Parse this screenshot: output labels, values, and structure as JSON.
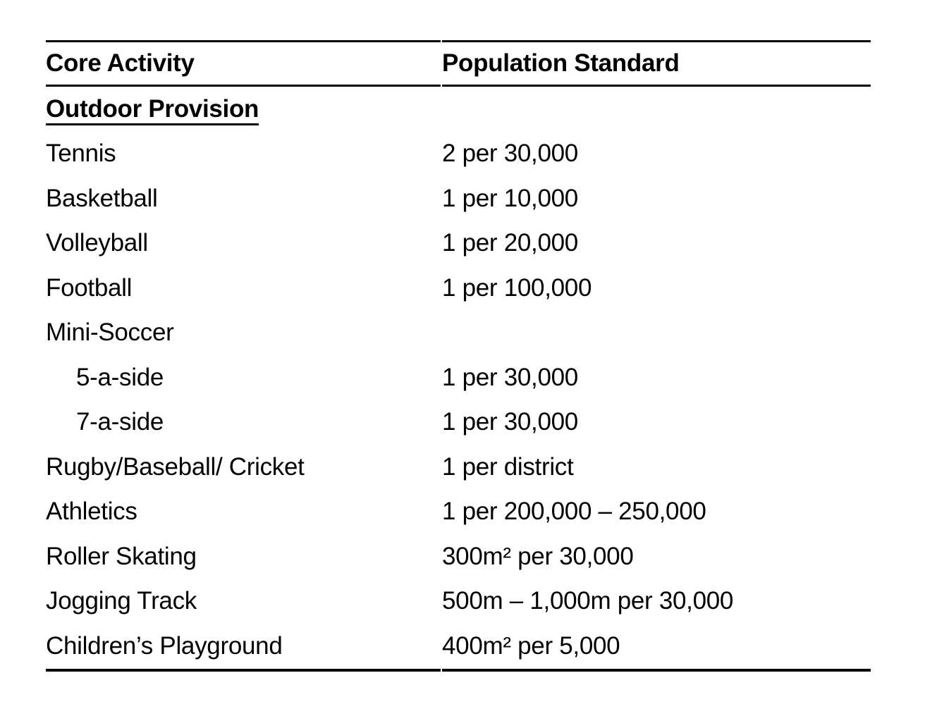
{
  "page": {
    "background_color": "#ffffff",
    "text_color": "#000000"
  },
  "table": {
    "header": {
      "col1": "Core Activity",
      "col2": "Population Standard"
    },
    "section": {
      "title": "Outdoor Provision"
    },
    "rows": [
      {
        "activity": "Tennis",
        "standard": "2 per 30,000"
      },
      {
        "activity": "Basketball",
        "standard": "1 per 10,000"
      },
      {
        "activity": "Volleyball",
        "standard": "1 per 20,000"
      },
      {
        "activity": "Football",
        "standard": "1 per 100,000"
      },
      {
        "activity": "Mini-Soccer",
        "standard": ""
      },
      {
        "activity": "5-a-side",
        "standard": "1 per 30,000"
      },
      {
        "activity": "7-a-side",
        "standard": "1 per 30,000"
      },
      {
        "activity": "Rugby/Baseball/ Cricket",
        "standard": "1 per district"
      },
      {
        "activity": "Athletics",
        "standard": "1 per 200,000 – 250,000"
      },
      {
        "activity": "Roller Skating",
        "standard": "300m² per 30,000"
      },
      {
        "activity": "Jogging Track",
        "standard": "500m – 1,000m per 30,000"
      },
      {
        "activity": "Children’s Playground",
        "standard": "400m² per 5,000"
      }
    ]
  }
}
